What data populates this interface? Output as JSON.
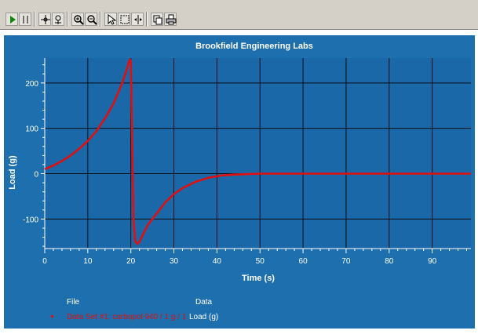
{
  "toolbar": {
    "buttons": [
      {
        "name": "play-icon",
        "group": 0
      },
      {
        "name": "pause-icon",
        "group": 0
      },
      {
        "name": "crosshair-icon",
        "group": 1
      },
      {
        "name": "pan-icon",
        "group": 1
      },
      {
        "name": "zoom-in-icon",
        "group": 2
      },
      {
        "name": "zoom-out-icon",
        "group": 2
      },
      {
        "name": "pointer-icon",
        "group": 3
      },
      {
        "name": "select-box-icon",
        "group": 3
      },
      {
        "name": "marker-icon",
        "group": 3
      },
      {
        "name": "copy-icon",
        "group": 4
      },
      {
        "name": "print-icon",
        "group": 4
      }
    ]
  },
  "colors": {
    "background": "#1e6fae",
    "plot_area": "#1b68a9",
    "grid": "#0c0c14",
    "axis": "#ffffff",
    "series": "#e01010",
    "text": "#ffffff"
  },
  "legend": {
    "file_header": "File",
    "data_header": "Data",
    "file_value": "Data Set #1: carbopol 940 / 1 g / 1",
    "data_value": "Load (g)"
  },
  "chart_data": {
    "type": "line",
    "title": "Brookfield Engineering Labs",
    "xlabel": "Time (s)",
    "ylabel": "Load (g)",
    "xlim": [
      0,
      99
    ],
    "ylim": [
      -165,
      255
    ],
    "x_ticks": [
      0,
      10,
      20,
      30,
      40,
      50,
      60,
      70,
      80,
      90
    ],
    "y_ticks": [
      200,
      100,
      0,
      -100
    ],
    "grid": true,
    "series": [
      {
        "x": [
          0,
          2,
          4,
          6,
          8,
          10,
          12,
          14,
          16,
          18,
          19,
          19.5,
          19.8,
          20,
          20.3,
          20.6,
          21,
          21.5,
          22,
          23,
          24,
          26,
          28,
          30,
          32,
          35,
          38,
          41,
          44,
          47,
          50,
          55,
          60,
          70,
          80,
          90,
          99
        ],
        "y": [
          10,
          18,
          28,
          40,
          55,
          72,
          94,
          122,
          155,
          200,
          228,
          245,
          252,
          245,
          80,
          -100,
          -148,
          -155,
          -150,
          -130,
          -112,
          -88,
          -63,
          -45,
          -32,
          -18,
          -9,
          -4,
          -2,
          -1,
          0,
          0,
          0,
          0,
          0,
          0,
          0
        ]
      }
    ]
  }
}
